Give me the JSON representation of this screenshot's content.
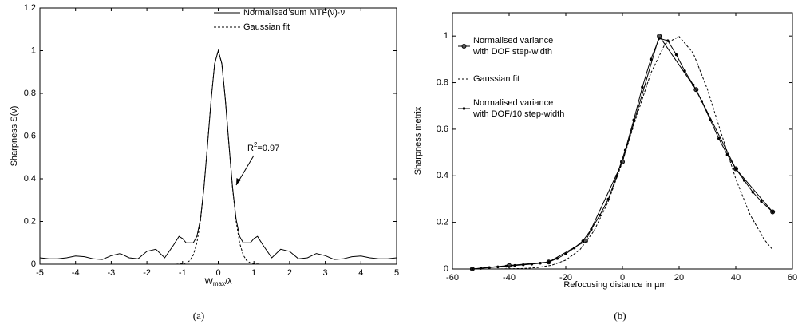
{
  "chart_data": [
    {
      "type": "line",
      "caption": "(a)",
      "ylabel": "Sharpness S(ν)",
      "xlabel_parts": [
        "W",
        "max",
        "/λ"
      ],
      "xlim": [
        -5,
        5
      ],
      "ylim": [
        0,
        1.2
      ],
      "xticks": [
        -5,
        -4,
        -3,
        -2,
        -1,
        0,
        1,
        2,
        3,
        4,
        5
      ],
      "yticks": [
        0,
        0.2,
        0.4,
        0.6,
        0.8,
        1,
        1.2
      ],
      "annotation_parts": [
        "R",
        "2",
        "=0.97"
      ],
      "series": [
        {
          "name": "Normalised sum MTF(ν)·ν",
          "color": "#000000",
          "dash": "solid",
          "marker": "none",
          "x": [
            -5,
            -4.75,
            -4.5,
            -4.25,
            -4,
            -3.75,
            -3.5,
            -3.25,
            -3,
            -2.75,
            -2.5,
            -2.25,
            -2,
            -1.75,
            -1.5,
            -1.25,
            -1.1,
            -1,
            -0.9,
            -0.8,
            -0.7,
            -0.6,
            -0.5,
            -0.4,
            -0.3,
            -0.2,
            -0.1,
            0,
            0.1,
            0.2,
            0.3,
            0.4,
            0.5,
            0.6,
            0.7,
            0.8,
            0.9,
            1,
            1.1,
            1.25,
            1.5,
            1.75,
            2,
            2.25,
            2.5,
            2.75,
            3,
            3.25,
            3.5,
            3.75,
            4,
            4.25,
            4.5,
            4.75,
            5
          ],
          "values": [
            0.03,
            0.025,
            0.025,
            0.03,
            0.038,
            0.035,
            0.025,
            0.022,
            0.04,
            0.05,
            0.03,
            0.025,
            0.06,
            0.07,
            0.03,
            0.09,
            0.13,
            0.12,
            0.1,
            0.1,
            0.1,
            0.13,
            0.21,
            0.36,
            0.56,
            0.77,
            0.94,
            1,
            0.94,
            0.77,
            0.56,
            0.36,
            0.21,
            0.13,
            0.1,
            0.1,
            0.1,
            0.12,
            0.13,
            0.09,
            0.03,
            0.07,
            0.06,
            0.025,
            0.03,
            0.05,
            0.04,
            0.022,
            0.025,
            0.035,
            0.038,
            0.03,
            0.025,
            0.025,
            0.03
          ]
        },
        {
          "name": "Gaussian fit",
          "color": "#000000",
          "dash": "dashed",
          "marker": "none",
          "x": [
            -1.3,
            -1.2,
            -1.1,
            -1,
            -0.9,
            -0.8,
            -0.7,
            -0.6,
            -0.5,
            -0.4,
            -0.3,
            -0.2,
            -0.1,
            0,
            0.1,
            0.2,
            0.3,
            0.4,
            0.5,
            0.6,
            0.7,
            0.8,
            0.9,
            1,
            1.1,
            1.2,
            1.3
          ],
          "values": [
            0,
            0,
            0.001,
            0.002,
            0.006,
            0.016,
            0.043,
            0.099,
            0.201,
            0.358,
            0.561,
            0.773,
            0.938,
            1,
            0.938,
            0.773,
            0.561,
            0.358,
            0.201,
            0.099,
            0.043,
            0.016,
            0.006,
            0.002,
            0.001,
            0,
            0
          ]
        }
      ]
    },
    {
      "type": "line",
      "caption": "(b)",
      "ylabel": "Sharpness metrix",
      "xlabel": "Refocusing distance in µm",
      "xlim": [
        -60,
        60
      ],
      "ylim": [
        0,
        1.1
      ],
      "xticks": [
        -60,
        -40,
        -20,
        0,
        20,
        40,
        60
      ],
      "yticks": [
        0,
        0.2,
        0.4,
        0.6,
        0.8,
        1
      ],
      "series": [
        {
          "name": [
            "Normalised variance",
            "with DOF step-width"
          ],
          "color": "#000000",
          "dash": "solid",
          "marker": "circle",
          "x": [
            -53,
            -40,
            -26,
            -13,
            0,
            13,
            26,
            40,
            53
          ],
          "values": [
            0,
            0.015,
            0.03,
            0.12,
            0.46,
            1,
            0.77,
            0.43,
            0.245
          ]
        },
        {
          "name": "Gaussian fit",
          "color": "#000000",
          "dash": "dashed",
          "marker": "none",
          "x": [
            -50,
            -45,
            -40,
            -35,
            -30,
            -25,
            -20,
            -15,
            -10,
            -5,
            0,
            5,
            10,
            15,
            20,
            25,
            30,
            35,
            40,
            45,
            50,
            53
          ],
          "values": [
            0,
            0,
            0.001,
            0.002,
            0.006,
            0.016,
            0.038,
            0.083,
            0.164,
            0.29,
            0.46,
            0.656,
            0.84,
            0.966,
            0.998,
            0.926,
            0.771,
            0.577,
            0.387,
            0.234,
            0.127,
            0.083
          ]
        },
        {
          "name": [
            "Normalised variance",
            "with DOF/10 step-width"
          ],
          "color": "#000000",
          "dash": "solid",
          "marker": "dot",
          "x": [
            -53,
            -50,
            -47,
            -44,
            -41,
            -38,
            -35,
            -32,
            -29,
            -26,
            -23,
            -20,
            -17,
            -14,
            -11,
            -8,
            -5,
            -2,
            1,
            4,
            7,
            10,
            13,
            16,
            19,
            22,
            25,
            28,
            31,
            34,
            37,
            40,
            43,
            46,
            49,
            53
          ],
          "values": [
            0,
            0.003,
            0.006,
            0.009,
            0.012,
            0.015,
            0.018,
            0.021,
            0.025,
            0.03,
            0.045,
            0.065,
            0.09,
            0.12,
            0.17,
            0.23,
            0.3,
            0.4,
            0.51,
            0.64,
            0.78,
            0.9,
            0.99,
            0.98,
            0.92,
            0.85,
            0.79,
            0.72,
            0.64,
            0.56,
            0.49,
            0.43,
            0.38,
            0.33,
            0.29,
            0.245
          ]
        }
      ]
    }
  ]
}
